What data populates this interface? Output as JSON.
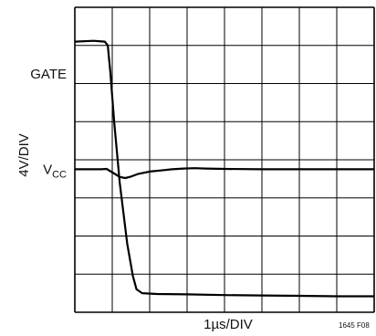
{
  "chart_data": {
    "type": "line",
    "xlabel": "1µs/DIV",
    "ylabel": "4V/DIV",
    "figure_id": "1645 F08",
    "divisions": {
      "x": 8,
      "y": 8
    },
    "xlim": [
      0,
      8
    ],
    "ylim": [
      0,
      8
    ],
    "grid": true,
    "trace_labels": [
      {
        "id": "gate",
        "text": "GATE",
        "level_div": 6.25
      },
      {
        "id": "vcc",
        "text": "V",
        "sub": "CC",
        "level_div": 3.75
      }
    ],
    "series": [
      {
        "id": "gate",
        "x": [
          0,
          0.5,
          0.8,
          0.88,
          0.95,
          1.05,
          1.2,
          1.4,
          1.55,
          1.65,
          1.8,
          2.2,
          3,
          4,
          5,
          6,
          7,
          8
        ],
        "y": [
          7.1,
          7.12,
          7.1,
          7.0,
          6.3,
          5.0,
          3.4,
          1.8,
          0.95,
          0.6,
          0.5,
          0.48,
          0.47,
          0.45,
          0.44,
          0.43,
          0.42,
          0.42
        ]
      },
      {
        "id": "vcc",
        "x": [
          0,
          0.7,
          0.85,
          0.95,
          1.05,
          1.2,
          1.35,
          1.5,
          1.7,
          2.0,
          2.3,
          2.6,
          2.9,
          3.2,
          3.5,
          4,
          5,
          6,
          7,
          8
        ],
        "y": [
          3.75,
          3.75,
          3.76,
          3.7,
          3.64,
          3.55,
          3.52,
          3.56,
          3.63,
          3.69,
          3.72,
          3.75,
          3.77,
          3.78,
          3.77,
          3.76,
          3.75,
          3.75,
          3.75,
          3.75
        ]
      }
    ]
  }
}
